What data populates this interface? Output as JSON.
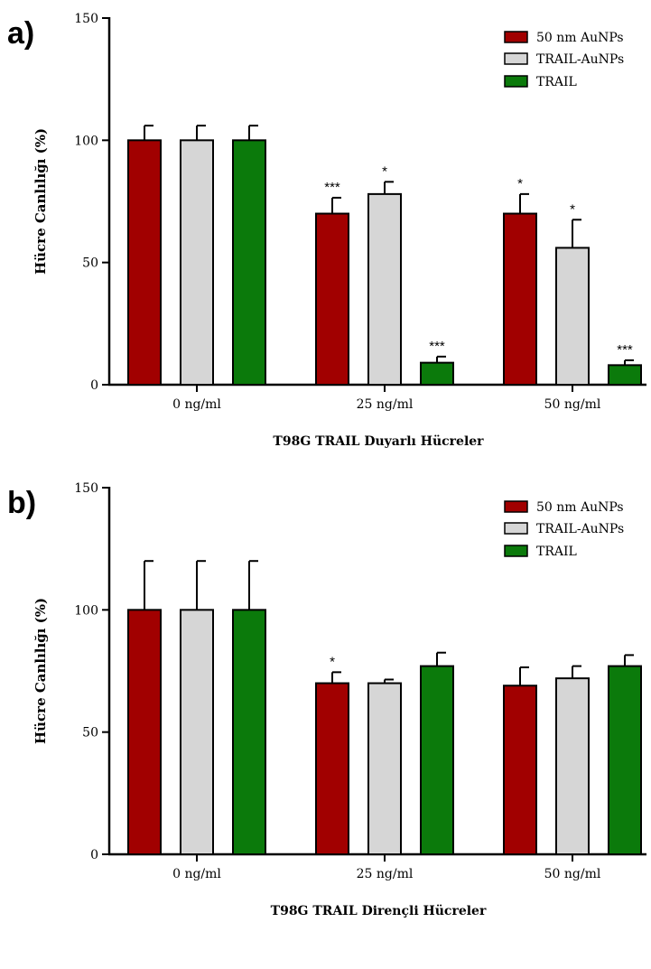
{
  "chart_data": [
    {
      "type": "bar",
      "panel_label": "a)",
      "xlabel": "T98G TRAIL Duyarlı Hücreler",
      "ylabel": "Hücre Canlılığı (%)",
      "ylim": [
        0,
        150
      ],
      "yticks": [
        "0",
        "50",
        "100",
        "150"
      ],
      "categories": [
        "0 ng/ml",
        "25 ng/ml",
        "50 ng/ml"
      ],
      "legend_position": "top-right",
      "series": [
        {
          "name": "50 nm AuNPs",
          "color": "#a10000",
          "values": [
            100,
            70,
            70
          ],
          "errors": [
            6,
            6.5,
            8
          ],
          "stars": [
            "",
            "***",
            "*"
          ]
        },
        {
          "name": "TRAIL-AuNPs",
          "color": "#d6d6d6",
          "values": [
            100,
            78,
            56
          ],
          "errors": [
            6,
            5,
            11.5
          ],
          "stars": [
            "",
            "*",
            "*"
          ]
        },
        {
          "name": "TRAIL",
          "color": "#0b7a0b",
          "values": [
            100,
            9,
            8
          ],
          "errors": [
            6,
            2.5,
            2
          ],
          "stars": [
            "",
            "***",
            "***"
          ]
        }
      ]
    },
    {
      "type": "bar",
      "panel_label": "b)",
      "xlabel": "T98G TRAIL Dirençli Hücreler",
      "ylabel": "Hücre Canlılığı (%)",
      "ylim": [
        0,
        150
      ],
      "yticks": [
        "0",
        "50",
        "100",
        "150"
      ],
      "categories": [
        "0 ng/ml",
        "25 ng/ml",
        "50 ng/ml"
      ],
      "legend_position": "top-right",
      "series": [
        {
          "name": "50 nm AuNPs",
          "color": "#a10000",
          "values": [
            100,
            70,
            69
          ],
          "errors": [
            20,
            4.5,
            7.5
          ],
          "stars": [
            "",
            "*",
            ""
          ]
        },
        {
          "name": "TRAIL-AuNPs",
          "color": "#d6d6d6",
          "values": [
            100,
            70,
            72
          ],
          "errors": [
            20,
            1.5,
            5
          ],
          "stars": [
            "",
            "",
            ""
          ]
        },
        {
          "name": "TRAIL",
          "color": "#0b7a0b",
          "values": [
            100,
            77,
            77
          ],
          "errors": [
            20,
            5.5,
            4.5
          ],
          "stars": [
            "",
            "",
            ""
          ]
        }
      ]
    }
  ]
}
